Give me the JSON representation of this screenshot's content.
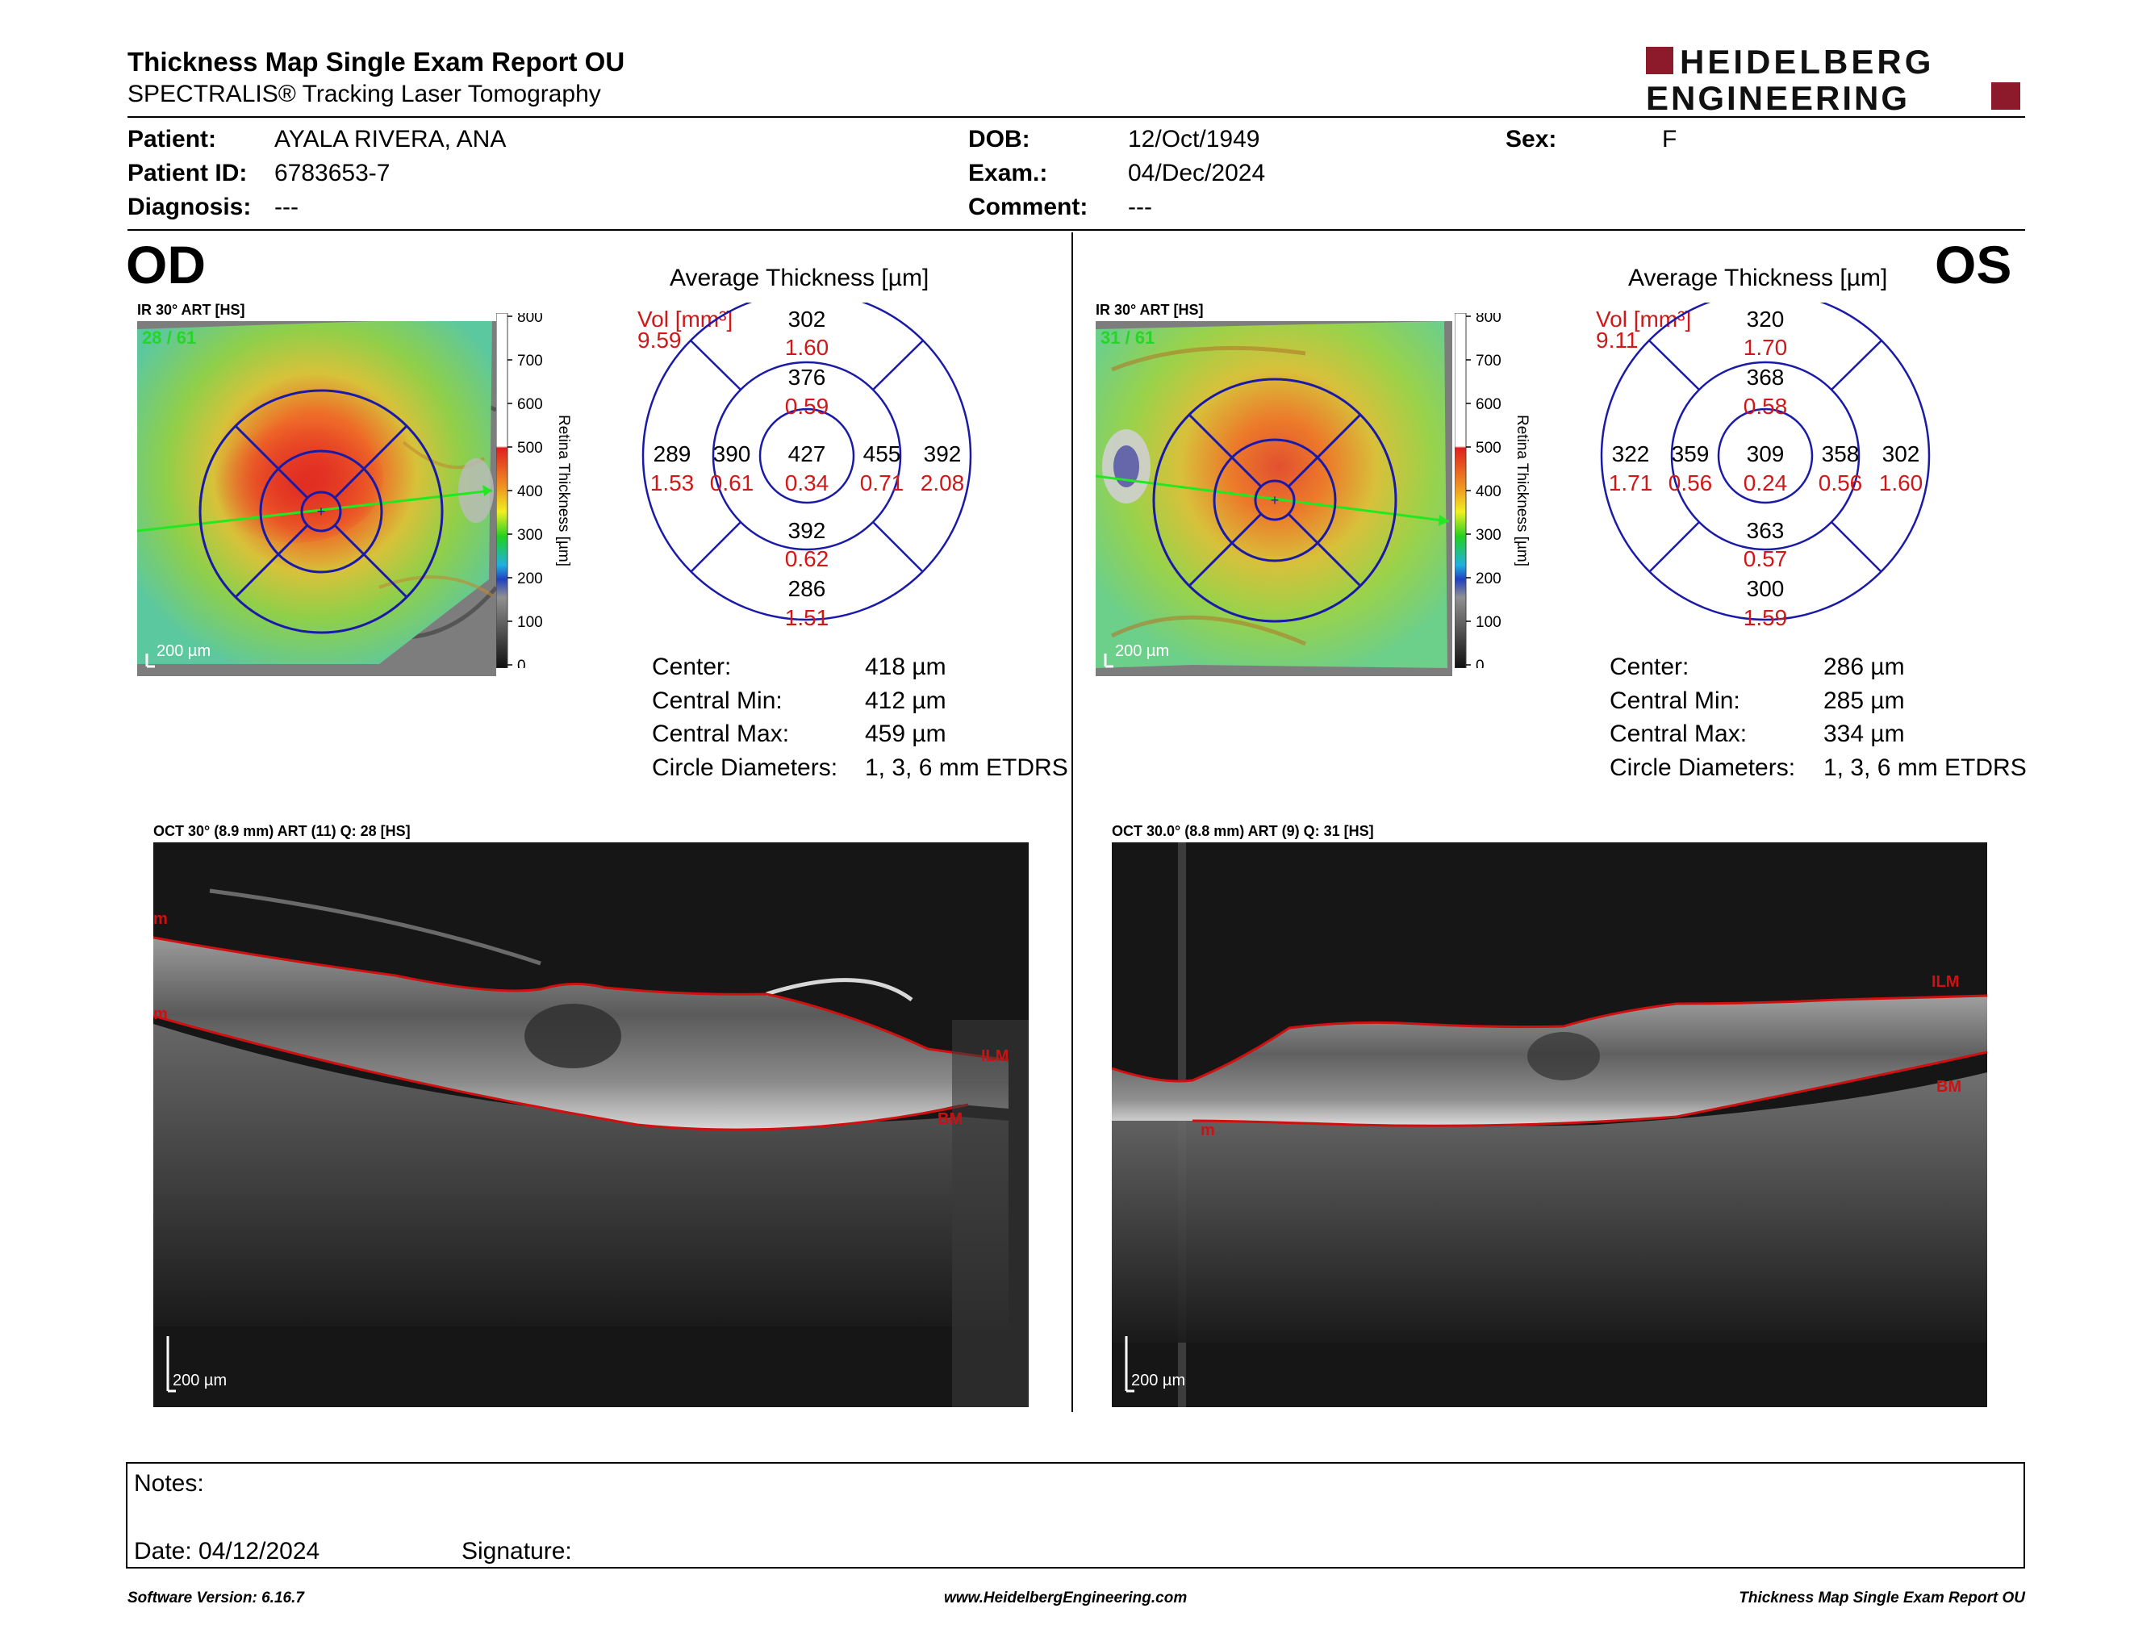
{
  "header": {
    "title": "Thickness Map Single Exam Report OU",
    "subtitle": "SPECTRALIS® Tracking Laser Tomography",
    "logo_line1": "HEIDELBERG",
    "logo_line2": "ENGINEERING"
  },
  "patient": {
    "patient_label": "Patient:",
    "patient_value": "AYALA RIVERA, ANA",
    "id_label": "Patient ID:",
    "id_value": "6783653-7",
    "diagnosis_label": "Diagnosis:",
    "diagnosis_value": "---",
    "dob_label": "DOB:",
    "dob_value": "12/Oct/1949",
    "exam_label": "Exam.:",
    "exam_value": "04/Dec/2024",
    "comment_label": "Comment:",
    "comment_value": "---",
    "sex_label": "Sex:",
    "sex_value": "F"
  },
  "colorbar": {
    "ticks": [
      "800",
      "700",
      "600",
      "500",
      "400",
      "300",
      "200",
      "100",
      "0"
    ],
    "label": "Retina Thickness [µm]"
  },
  "od": {
    "eye": "OD",
    "ir_caption": "IR 30° ART [HS]",
    "quality": "28 / 61",
    "scale": "200 µm",
    "avg_title": "Average Thickness [µm]",
    "vol_label": "Vol [mm³]",
    "vol_value": "9.59",
    "grid": {
      "outer_superior": {
        "t": "302",
        "v": "1.60"
      },
      "inner_superior": {
        "t": "376",
        "v": "0.59"
      },
      "outer_temporal": {
        "t": "289",
        "v": "1.53"
      },
      "inner_temporal": {
        "t": "390",
        "v": "0.61"
      },
      "center": {
        "t": "427",
        "v": "0.34"
      },
      "inner_nasal": {
        "t": "455",
        "v": "0.71"
      },
      "outer_nasal": {
        "t": "392",
        "v": "2.08"
      },
      "inner_inferior": {
        "t": "392",
        "v": "0.62"
      },
      "outer_inferior": {
        "t": "286",
        "v": "1.51"
      }
    },
    "stats": {
      "center_label": "Center:",
      "center_value": "418 µm",
      "min_label": "Central Min:",
      "min_value": "412 µm",
      "max_label": "Central Max:",
      "max_value": "459 µm",
      "circ_label": "Circle Diameters:",
      "circ_value": "1, 3, 6 mm ETDRS"
    },
    "oct_caption": "OCT 30° (8.9 mm) ART (11) Q: 28 [HS]",
    "oct_scale": "200 µm",
    "ilm": "ILM",
    "bm": "BM",
    "m1": "m",
    "m2": "m"
  },
  "os": {
    "eye": "OS",
    "ir_caption": "IR 30° ART [HS]",
    "quality": "31 / 61",
    "scale": "200 µm",
    "avg_title": "Average Thickness [µm]",
    "vol_label": "Vol [mm³]",
    "vol_value": "9.11",
    "grid": {
      "outer_superior": {
        "t": "320",
        "v": "1.70"
      },
      "inner_superior": {
        "t": "368",
        "v": "0.58"
      },
      "outer_temporal": {
        "t": "322",
        "v": "1.71"
      },
      "inner_temporal": {
        "t": "359",
        "v": "0.56"
      },
      "center": {
        "t": "309",
        "v": "0.24"
      },
      "inner_nasal": {
        "t": "358",
        "v": "0.56"
      },
      "outer_nasal": {
        "t": "302",
        "v": "1.60"
      },
      "inner_inferior": {
        "t": "363",
        "v": "0.57"
      },
      "outer_inferior": {
        "t": "300",
        "v": "1.59"
      }
    },
    "stats": {
      "center_label": "Center:",
      "center_value": "286 µm",
      "min_label": "Central Min:",
      "min_value": "285 µm",
      "max_label": "Central Max:",
      "max_value": "334 µm",
      "circ_label": "Circle Diameters:",
      "circ_value": "1, 3, 6 mm ETDRS"
    },
    "oct_caption": "OCT 30.0° (8.8 mm) ART (9) Q: 31 [HS]",
    "oct_scale": "200 µm",
    "ilm": "ILM",
    "bm": "BM",
    "m1": "m"
  },
  "notes": {
    "notes_label": "Notes:",
    "date_label": "Date: 04/12/2024",
    "signature_label": "Signature:"
  },
  "footer": {
    "software": "Software Version: 6.16.7",
    "website": "www.HeidelbergEngineering.com",
    "report_name": "Thickness Map Single Exam Report OU"
  },
  "colors": {
    "red_value": "#d01818",
    "grid_blue": "#1a1aa8",
    "logo_red": "#8c1a2a",
    "quality_green": "#29d429",
    "seg_red": "#d01010"
  }
}
